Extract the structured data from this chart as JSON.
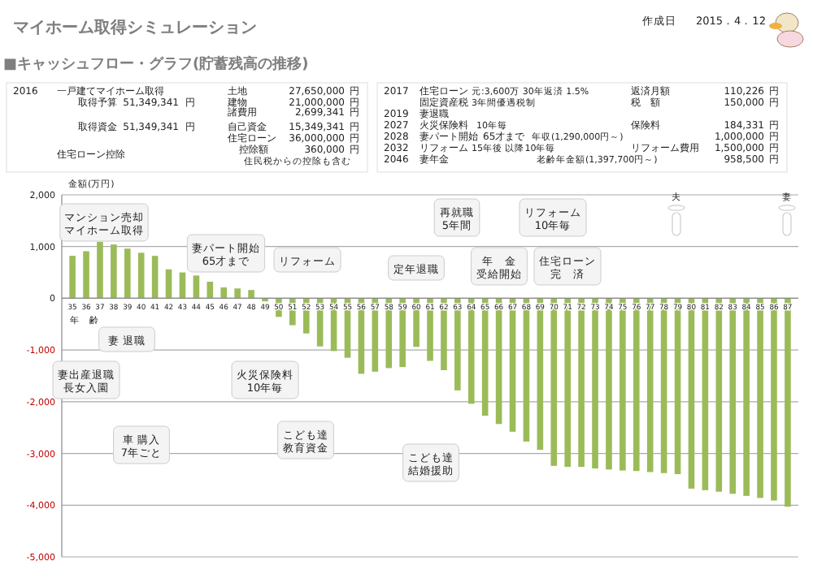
{
  "chart_data": {
    "type": "bar",
    "title": "マイホーム取得シミュレーション",
    "subtitle": "■キャッシュフロー・グラフ(貯蓄残高の推移)",
    "ylabel": "金額(万円)",
    "categories": [
      "35",
      "36",
      "37",
      "38",
      "39",
      "40",
      "41",
      "42",
      "43",
      "44",
      "45",
      "46",
      "47",
      "48",
      "49",
      "50",
      "51",
      "52",
      "53",
      "54",
      "55",
      "56",
      "57",
      "58",
      "59",
      "60",
      "61",
      "62",
      "63",
      "64",
      "65",
      "66",
      "67",
      "68",
      "69",
      "70",
      "71",
      "72",
      "73",
      "74",
      "75",
      "76",
      "77",
      "78",
      "79",
      "80",
      "81",
      "82",
      "83",
      "84",
      "85",
      "86",
      "87"
    ],
    "values": [
      820,
      910,
      1090,
      1040,
      960,
      880,
      820,
      560,
      500,
      440,
      320,
      210,
      190,
      160,
      -60,
      -360,
      -520,
      -680,
      -930,
      -1020,
      -1150,
      -1460,
      -1420,
      -1350,
      -1330,
      -940,
      -1210,
      -1390,
      -1780,
      -2040,
      -2270,
      -2430,
      -2580,
      -2770,
      -2930,
      -3240,
      -3260,
      -3260,
      -3290,
      -3310,
      -3330,
      -3340,
      -3360,
      -3380,
      -3400,
      -3680,
      -3710,
      -3740,
      -3780,
      -3820,
      -3860,
      -3910,
      -4030
    ],
    "color": "#9bbb59",
    "ylim": [
      -5000,
      2000
    ],
    "yticks": [
      {
        "value": 2000,
        "label": "2,000"
      },
      {
        "value": 1000,
        "label": "1,000"
      },
      0,
      {
        "value": -1000,
        "label": "-1,000"
      },
      {
        "value": -2000,
        "label": "-2,000"
      },
      {
        "value": -3000,
        "label": "-3,000"
      },
      {
        "value": -4000,
        "label": "-4,000"
      },
      {
        "value": -5000,
        "label": "-5,000"
      }
    ],
    "grid": "y",
    "annotations": [
      "作成日",
      "2015．4．12",
      "2016",
      "一戸建てマイホーム取得",
      "取得予算",
      "51,349,341",
      "円",
      "取得資金",
      "51,349,341",
      "円",
      "住宅ローン控除",
      "土地",
      "27,650,000",
      "円",
      "建物",
      "21,000,000",
      "円",
      "諸費用",
      "2,699,341",
      "円",
      "自己資金",
      "15,349,341",
      "円",
      "住宅ローン",
      "36,000,000",
      "円",
      "控除額",
      "360,000",
      "円",
      "住民税からの控除も含む",
      "2017",
      "住宅ローン",
      "元:3,600万 30年返済 1.5%",
      "返済月額",
      "110,226",
      "円",
      "固定資産税",
      "3年間優遇税制",
      "税　額",
      "150,000",
      "円",
      "2019",
      "妻退職",
      "2027",
      "火災保険料",
      "10年毎",
      "保険料",
      "184,331",
      "円",
      "2028",
      "妻パート開始",
      "65才まで",
      "年収(1,290,000円～)",
      "1,000,000",
      "円",
      "2032",
      "リフォーム",
      "15年後 以降10年毎",
      "リフォーム費用",
      "1,500,000",
      "円",
      "2046",
      "妻年金",
      "老齢年金額(1,397,700円～)",
      "958,500",
      "円",
      "年　齢",
      "マンション売却",
      "マイホーム取得",
      "妻パート開始",
      "65才まで",
      "リフォーム",
      "定年退職",
      "再就職",
      "5年間",
      "リフォーム",
      "10年毎",
      "年　金",
      "受給開始",
      "住宅ローン",
      "完　済",
      "夫",
      "妻",
      "妻 退職",
      "妻出産退職",
      "長女入園",
      "火災保険料",
      "10年毎",
      "車 購入",
      "7年ごと",
      "こども達",
      "教育資金",
      "こども達",
      "結婚援助"
    ]
  }
}
